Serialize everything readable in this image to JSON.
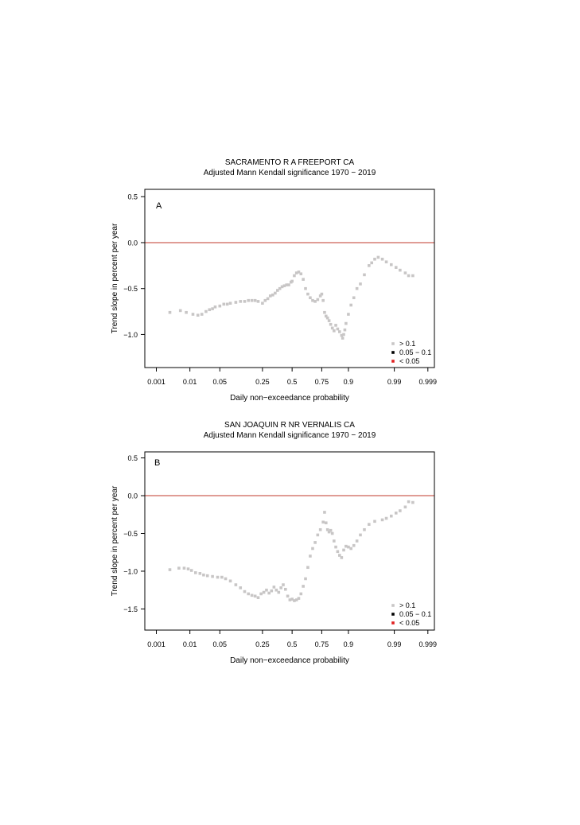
{
  "figure": {
    "colors": {
      "not_significant": "#c8c6c6",
      "moderate": "#000000",
      "significant": "#e02020",
      "zero_line": "#c0392b",
      "frame": "#000000"
    }
  },
  "chart_data": [
    {
      "panel_label": "A",
      "type": "scatter",
      "title": "SACRAMENTO R A FREEPORT CA",
      "subtitle": "Adjusted Mann Kendall significance  1970 − 2019",
      "xlabel": "Daily non−exceedance probability",
      "ylabel": "Trend slope in percent per year",
      "x_scale": "normal-probability",
      "xlim": [
        0.0004,
        0.9994
      ],
      "ylim": [
        -1.36,
        0.58
      ],
      "xticks": [
        0.001,
        0.01,
        0.05,
        0.25,
        0.5,
        0.75,
        0.9,
        0.99,
        0.999
      ],
      "xtick_labels": [
        "0.001",
        "0.01",
        "0.05",
        "0.25",
        "0.5",
        "0.75",
        "0.9",
        "0.99",
        "0.999"
      ],
      "yticks": [
        0.5,
        0.0,
        -0.5,
        -1.0
      ],
      "ytick_labels": [
        "0.5",
        "0.0",
        "−0.5",
        "−1.0"
      ],
      "reference_line_y": 0,
      "legend_position": "bottom-right",
      "legend": [
        {
          "label": "> 0.1",
          "color": "#c8c6c6"
        },
        {
          "label": "0.05 − 0.1",
          "color": "#000000"
        },
        {
          "label": "< 0.05",
          "color": "#e02020"
        }
      ],
      "series": [
        {
          "legend": "> 0.1",
          "color": "#c8c6c6",
          "points": [
            [
              0.0027,
              -0.76
            ],
            [
              0.0055,
              -0.74
            ],
            [
              0.008,
              -0.76
            ],
            [
              0.012,
              -0.78
            ],
            [
              0.016,
              -0.79
            ],
            [
              0.02,
              -0.78
            ],
            [
              0.025,
              -0.75
            ],
            [
              0.03,
              -0.73
            ],
            [
              0.035,
              -0.72
            ],
            [
              0.04,
              -0.7
            ],
            [
              0.05,
              -0.69
            ],
            [
              0.06,
              -0.67
            ],
            [
              0.07,
              -0.67
            ],
            [
              0.08,
              -0.66
            ],
            [
              0.1,
              -0.65
            ],
            [
              0.12,
              -0.64
            ],
            [
              0.14,
              -0.64
            ],
            [
              0.16,
              -0.63
            ],
            [
              0.18,
              -0.63
            ],
            [
              0.2,
              -0.63
            ],
            [
              0.22,
              -0.64
            ],
            [
              0.25,
              -0.66
            ],
            [
              0.27,
              -0.63
            ],
            [
              0.29,
              -0.61
            ],
            [
              0.31,
              -0.58
            ],
            [
              0.33,
              -0.57
            ],
            [
              0.35,
              -0.55
            ],
            [
              0.37,
              -0.52
            ],
            [
              0.39,
              -0.5
            ],
            [
              0.41,
              -0.48
            ],
            [
              0.43,
              -0.47
            ],
            [
              0.45,
              -0.46
            ],
            [
              0.47,
              -0.46
            ],
            [
              0.49,
              -0.43
            ],
            [
              0.5,
              -0.42
            ],
            [
              0.52,
              -0.36
            ],
            [
              0.54,
              -0.33
            ],
            [
              0.56,
              -0.32
            ],
            [
              0.58,
              -0.34
            ],
            [
              0.6,
              -0.4
            ],
            [
              0.62,
              -0.5
            ],
            [
              0.64,
              -0.56
            ],
            [
              0.66,
              -0.6
            ],
            [
              0.68,
              -0.63
            ],
            [
              0.7,
              -0.64
            ],
            [
              0.72,
              -0.62
            ],
            [
              0.74,
              -0.58
            ],
            [
              0.75,
              -0.56
            ],
            [
              0.76,
              -0.63
            ],
            [
              0.77,
              -0.76
            ],
            [
              0.78,
              -0.8
            ],
            [
              0.79,
              -0.82
            ],
            [
              0.8,
              -0.85
            ],
            [
              0.81,
              -0.89
            ],
            [
              0.82,
              -0.93
            ],
            [
              0.83,
              -0.96
            ],
            [
              0.84,
              -0.9
            ],
            [
              0.85,
              -0.94
            ],
            [
              0.86,
              -0.97
            ],
            [
              0.87,
              -1.01
            ],
            [
              0.875,
              -1.04
            ],
            [
              0.88,
              -1.0
            ],
            [
              0.885,
              -0.95
            ],
            [
              0.89,
              -0.88
            ],
            [
              0.9,
              -0.78
            ],
            [
              0.91,
              -0.68
            ],
            [
              0.92,
              -0.6
            ],
            [
              0.93,
              -0.5
            ],
            [
              0.94,
              -0.45
            ],
            [
              0.95,
              -0.35
            ],
            [
              0.96,
              -0.25
            ],
            [
              0.965,
              -0.22
            ],
            [
              0.97,
              -0.18
            ],
            [
              0.975,
              -0.16
            ],
            [
              0.98,
              -0.18
            ],
            [
              0.984,
              -0.21
            ],
            [
              0.988,
              -0.24
            ],
            [
              0.991,
              -0.27
            ],
            [
              0.993,
              -0.3
            ],
            [
              0.995,
              -0.33
            ],
            [
              0.996,
              -0.36
            ],
            [
              0.997,
              -0.36
            ]
          ]
        }
      ]
    },
    {
      "panel_label": "B",
      "type": "scatter",
      "title": "SAN JOAQUIN R NR VERNALIS CA",
      "subtitle": "Adjusted Mann Kendall significance  1970 − 2019",
      "xlabel": "Daily non−exceedance probability",
      "ylabel": "Trend slope in percent per year",
      "x_scale": "normal-probability",
      "xlim": [
        0.0004,
        0.9994
      ],
      "ylim": [
        -1.78,
        0.58
      ],
      "xticks": [
        0.001,
        0.01,
        0.05,
        0.25,
        0.5,
        0.75,
        0.9,
        0.99,
        0.999
      ],
      "xtick_labels": [
        "0.001",
        "0.01",
        "0.05",
        "0.25",
        "0.5",
        "0.75",
        "0.9",
        "0.99",
        "0.999"
      ],
      "yticks": [
        0.5,
        0.0,
        -0.5,
        -1.0,
        -1.5
      ],
      "ytick_labels": [
        "0.5",
        "0.0",
        "−0.5",
        "−1.0",
        "−1.5"
      ],
      "reference_line_y": 0,
      "legend_position": "bottom-right",
      "legend": [
        {
          "label": "> 0.1",
          "color": "#c8c6c6"
        },
        {
          "label": "0.05 − 0.1",
          "color": "#000000"
        },
        {
          "label": "< 0.05",
          "color": "#e02020"
        }
      ],
      "series": [
        {
          "legend": "> 0.1",
          "color": "#c8c6c6",
          "points": [
            [
              0.0027,
              -0.98
            ],
            [
              0.005,
              -0.96
            ],
            [
              0.007,
              -0.96
            ],
            [
              0.009,
              -0.97
            ],
            [
              0.011,
              -0.99
            ],
            [
              0.014,
              -1.02
            ],
            [
              0.018,
              -1.03
            ],
            [
              0.022,
              -1.05
            ],
            [
              0.027,
              -1.06
            ],
            [
              0.035,
              -1.07
            ],
            [
              0.045,
              -1.08
            ],
            [
              0.055,
              -1.08
            ],
            [
              0.065,
              -1.1
            ],
            [
              0.08,
              -1.13
            ],
            [
              0.1,
              -1.18
            ],
            [
              0.12,
              -1.22
            ],
            [
              0.14,
              -1.27
            ],
            [
              0.16,
              -1.3
            ],
            [
              0.18,
              -1.32
            ],
            [
              0.2,
              -1.33
            ],
            [
              0.22,
              -1.35
            ],
            [
              0.24,
              -1.3
            ],
            [
              0.26,
              -1.28
            ],
            [
              0.28,
              -1.25
            ],
            [
              0.3,
              -1.29
            ],
            [
              0.32,
              -1.26
            ],
            [
              0.34,
              -1.21
            ],
            [
              0.36,
              -1.25
            ],
            [
              0.38,
              -1.28
            ],
            [
              0.4,
              -1.22
            ],
            [
              0.42,
              -1.18
            ],
            [
              0.44,
              -1.24
            ],
            [
              0.46,
              -1.33
            ],
            [
              0.48,
              -1.38
            ],
            [
              0.5,
              -1.37
            ],
            [
              0.52,
              -1.39
            ],
            [
              0.54,
              -1.38
            ],
            [
              0.56,
              -1.36
            ],
            [
              0.58,
              -1.3
            ],
            [
              0.6,
              -1.2
            ],
            [
              0.62,
              -1.1
            ],
            [
              0.64,
              -0.95
            ],
            [
              0.66,
              -0.8
            ],
            [
              0.68,
              -0.7
            ],
            [
              0.7,
              -0.62
            ],
            [
              0.72,
              -0.52
            ],
            [
              0.74,
              -0.45
            ],
            [
              0.76,
              -0.35
            ],
            [
              0.77,
              -0.22
            ],
            [
              0.78,
              -0.36
            ],
            [
              0.79,
              -0.45
            ],
            [
              0.8,
              -0.48
            ],
            [
              0.81,
              -0.46
            ],
            [
              0.82,
              -0.5
            ],
            [
              0.83,
              -0.6
            ],
            [
              0.84,
              -0.68
            ],
            [
              0.85,
              -0.74
            ],
            [
              0.86,
              -0.79
            ],
            [
              0.87,
              -0.82
            ],
            [
              0.88,
              -0.72
            ],
            [
              0.89,
              -0.67
            ],
            [
              0.9,
              -0.68
            ],
            [
              0.91,
              -0.7
            ],
            [
              0.92,
              -0.66
            ],
            [
              0.93,
              -0.6
            ],
            [
              0.94,
              -0.52
            ],
            [
              0.95,
              -0.45
            ],
            [
              0.96,
              -0.38
            ],
            [
              0.97,
              -0.34
            ],
            [
              0.98,
              -0.32
            ],
            [
              0.984,
              -0.3
            ],
            [
              0.988,
              -0.27
            ],
            [
              0.991,
              -0.23
            ],
            [
              0.993,
              -0.2
            ],
            [
              0.995,
              -0.15
            ],
            [
              0.996,
              -0.08
            ],
            [
              0.997,
              -0.09
            ]
          ]
        }
      ]
    }
  ]
}
